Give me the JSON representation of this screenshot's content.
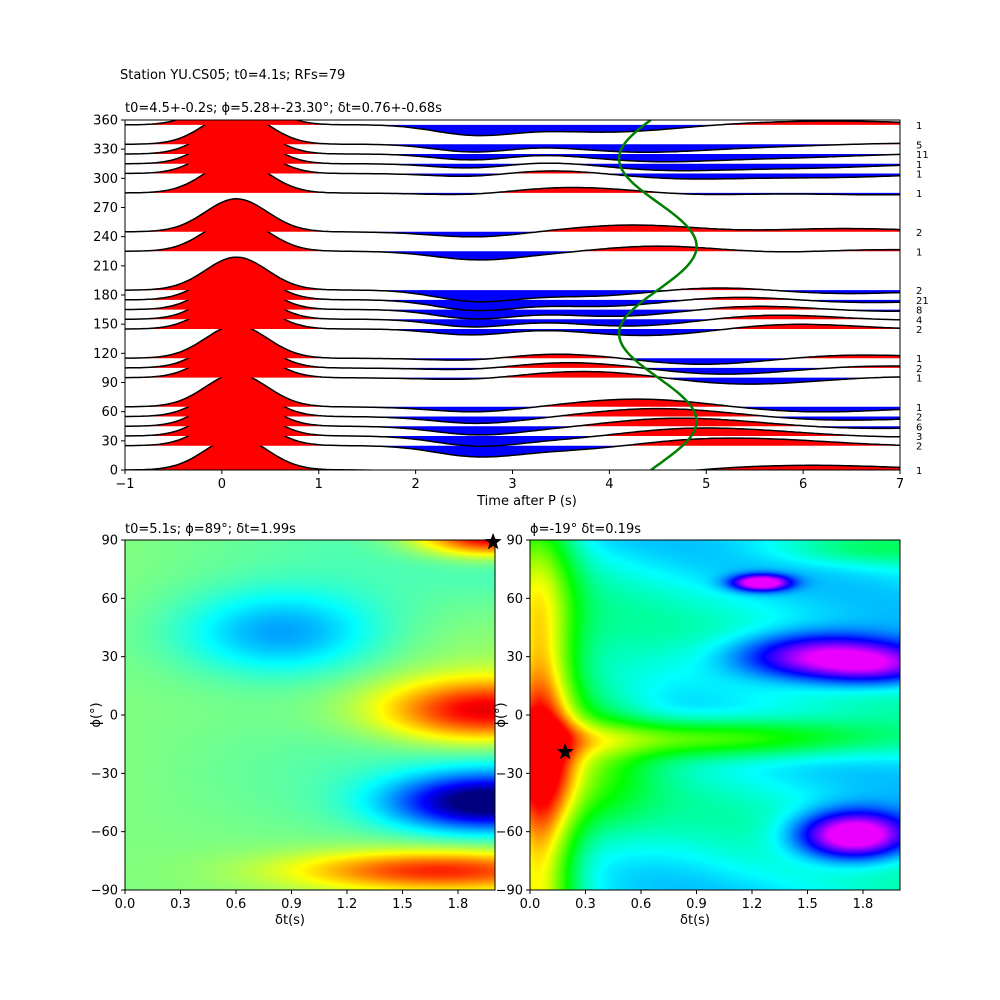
{
  "suptitle": "Station YU.CS05; t0=4.1s; RFs=79",
  "chart_data": [
    {
      "type": "line",
      "title": "t0=4.5+-0.2s; ϕ=5.28+-23.30°; δt=0.76+-0.68s",
      "xlabel": "Time after P (s)",
      "ylabel": "",
      "xlim": [
        -1,
        7
      ],
      "ylim": [
        0,
        360
      ],
      "xticks": [
        "−1",
        "0",
        "1",
        "2",
        "3",
        "4",
        "5",
        "6",
        "7"
      ],
      "yticks": [
        "0",
        "30",
        "60",
        "90",
        "120",
        "150",
        "180",
        "210",
        "240",
        "270",
        "300",
        "330",
        "360"
      ],
      "fill_colors": {
        "positive": "#ff0000",
        "negative": "#0000ff",
        "trace": "#000000",
        "curve": "#008000"
      },
      "traces": [
        {
          "baz": 0,
          "count": "1"
        },
        {
          "baz": 25,
          "count": "2"
        },
        {
          "baz": 35,
          "count": "3"
        },
        {
          "baz": 45,
          "count": "6"
        },
        {
          "baz": 55,
          "count": "2"
        },
        {
          "baz": 65,
          "count": "1"
        },
        {
          "baz": 95,
          "count": "1"
        },
        {
          "baz": 105,
          "count": "2"
        },
        {
          "baz": 115,
          "count": "1"
        },
        {
          "baz": 145,
          "count": "2"
        },
        {
          "baz": 155,
          "count": "4"
        },
        {
          "baz": 165,
          "count": "8"
        },
        {
          "baz": 175,
          "count": "21"
        },
        {
          "baz": 185,
          "count": "2"
        },
        {
          "baz": 225,
          "count": "1"
        },
        {
          "baz": 245,
          "count": "2"
        },
        {
          "baz": 285,
          "count": "1"
        },
        {
          "baz": 305,
          "count": "1"
        },
        {
          "baz": 315,
          "count": "1"
        },
        {
          "baz": 325,
          "count": "11"
        },
        {
          "baz": 335,
          "count": "5"
        },
        {
          "baz": 355,
          "count": "1"
        }
      ],
      "t0_curve": {
        "mean": 4.5,
        "amplitude": 0.4
      }
    },
    {
      "type": "heatmap",
      "title": "t0=5.1s; ϕ=89°; δt=1.99s",
      "xlabel": "δt(s)",
      "ylabel": "ϕ(°)",
      "xlim": [
        0,
        2.0
      ],
      "ylim": [
        -90,
        90
      ],
      "xticks": [
        "0.0",
        "0.3",
        "0.6",
        "0.9",
        "1.2",
        "1.5",
        "1.8"
      ],
      "yticks": [
        "−90",
        "−60",
        "−30",
        "0",
        "30",
        "60",
        "90"
      ],
      "colormap": "jet",
      "best": {
        "dt": 1.99,
        "phi": 89
      }
    },
    {
      "type": "heatmap",
      "title": "ϕ=-19° δt=0.19s",
      "xlabel": "δt(s)",
      "ylabel": "ϕ(°)",
      "xlim": [
        0,
        2.0
      ],
      "ylim": [
        -90,
        90
      ],
      "xticks": [
        "0.0",
        "0.3",
        "0.6",
        "0.9",
        "1.2",
        "1.5",
        "1.8"
      ],
      "yticks": [
        "−90",
        "−60",
        "−30",
        "0",
        "30",
        "60",
        "90"
      ],
      "colormap": "hsv",
      "best": {
        "dt": 0.19,
        "phi": -19
      }
    }
  ]
}
